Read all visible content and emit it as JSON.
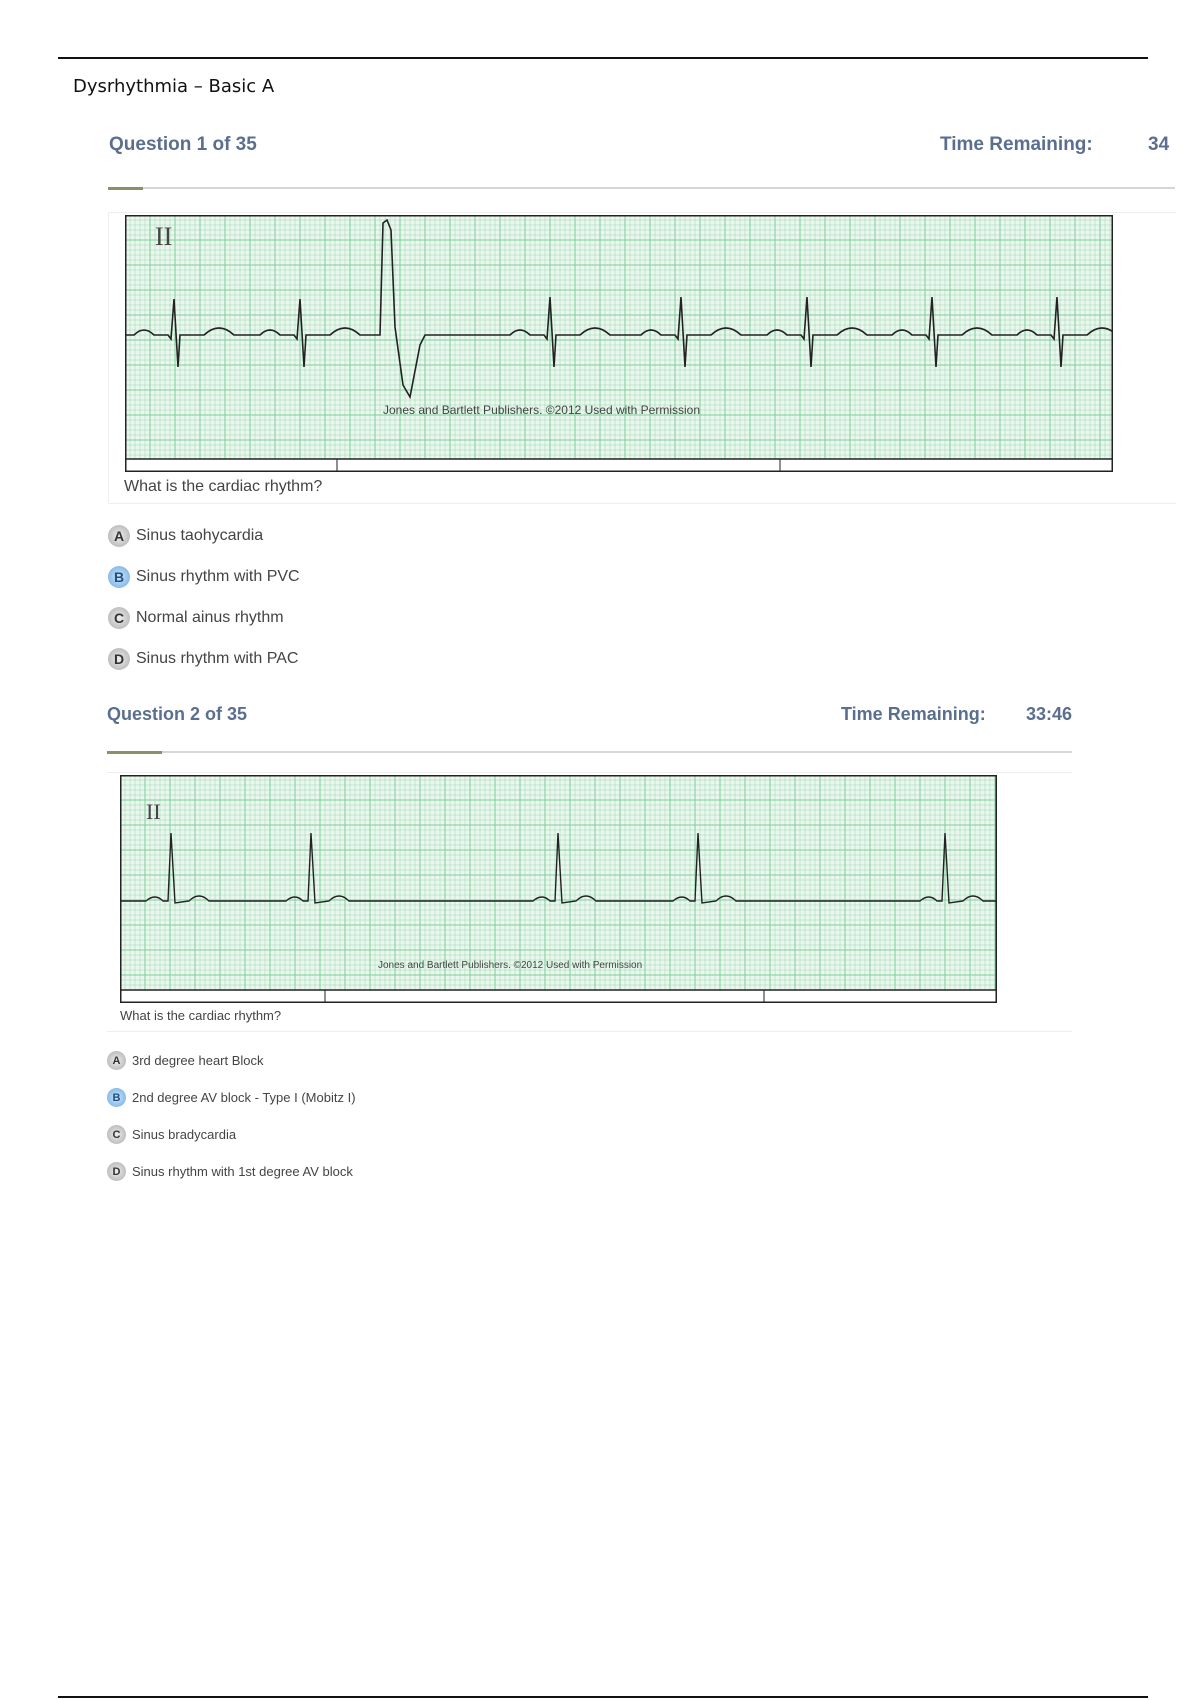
{
  "document": {
    "title": "Dysrhythmia – Basic A"
  },
  "colors": {
    "header": "#5a6f8f",
    "ecg_grid": "#7fcf9a",
    "selected": "#6aa9e0"
  },
  "questions": [
    {
      "header": "Question 1 of 35",
      "time_label": "Time Remaining:",
      "time_value": "34",
      "lead": "II",
      "credit": "Jones and Bartlett Publishers. ©2012 Used with Permission",
      "prompt": "What is the cardiac rhythm?",
      "options": [
        {
          "letter": "A",
          "text": "Sinus taohycardia",
          "selected": false
        },
        {
          "letter": "B",
          "text": "Sinus rhythm with PVC",
          "selected": true
        },
        {
          "letter": "C",
          "text": "Normal ainus rhythm",
          "selected": false
        },
        {
          "letter": "D",
          "text": "Sinus rhythm with PAC",
          "selected": false
        }
      ]
    },
    {
      "header": "Question 2 of 35",
      "time_label": "Time Remaining:",
      "time_value": "33:46",
      "lead": "II",
      "credit": "Jones and Bartlett Publishers. ©2012 Used with Permission",
      "prompt": "What is the cardiac rhythm?",
      "options": [
        {
          "letter": "A",
          "text": "3rd degree heart Block",
          "selected": false
        },
        {
          "letter": "B",
          "text": "2nd degree AV block - Type I (Mobitz I)",
          "selected": true
        },
        {
          "letter": "C",
          "text": "Sinus bradycardia",
          "selected": false
        },
        {
          "letter": "D",
          "text": "Sinus rhythm with 1st degree AV block",
          "selected": false
        }
      ]
    }
  ]
}
